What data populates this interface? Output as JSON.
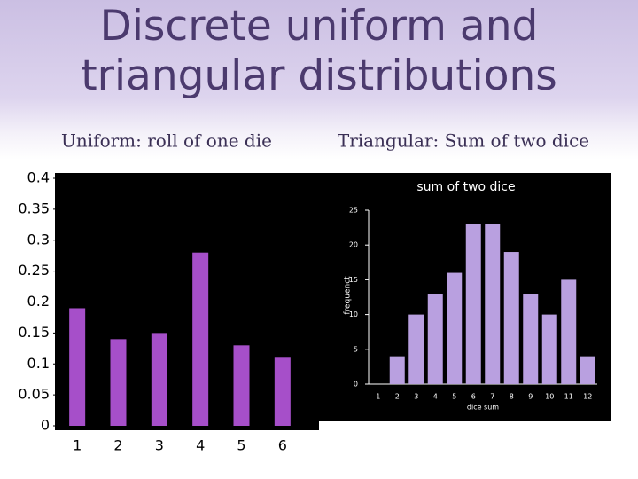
{
  "title": "Discrete uniform and triangular distributions",
  "chart_data": [
    {
      "type": "bar",
      "subtitle": "Uniform: roll of one die",
      "categories": [
        "1",
        "2",
        "3",
        "4",
        "5",
        "6"
      ],
      "values": [
        0.19,
        0.14,
        0.15,
        0.28,
        0.13,
        0.11
      ],
      "color": "#a64fc9",
      "ylim": [
        0,
        0.4
      ],
      "yticks": [
        0,
        0.05,
        0.1,
        0.15,
        0.2,
        0.25,
        0.3,
        0.35,
        0.4
      ]
    },
    {
      "type": "bar",
      "subtitle": "Triangular: Sum of two dice",
      "title": "sum of two dice",
      "xlabel": "dice sum",
      "ylabel": "frequenct",
      "categories": [
        "1",
        "2",
        "3",
        "4",
        "5",
        "6",
        "7",
        "8",
        "9",
        "10",
        "11",
        "12"
      ],
      "values": [
        0,
        4,
        10,
        13,
        16,
        23,
        23,
        19,
        13,
        10,
        15,
        4
      ],
      "color": "#b9a0e0",
      "ylim": [
        0,
        25
      ],
      "yticks": [
        0,
        5,
        10,
        15,
        20,
        25
      ]
    }
  ]
}
